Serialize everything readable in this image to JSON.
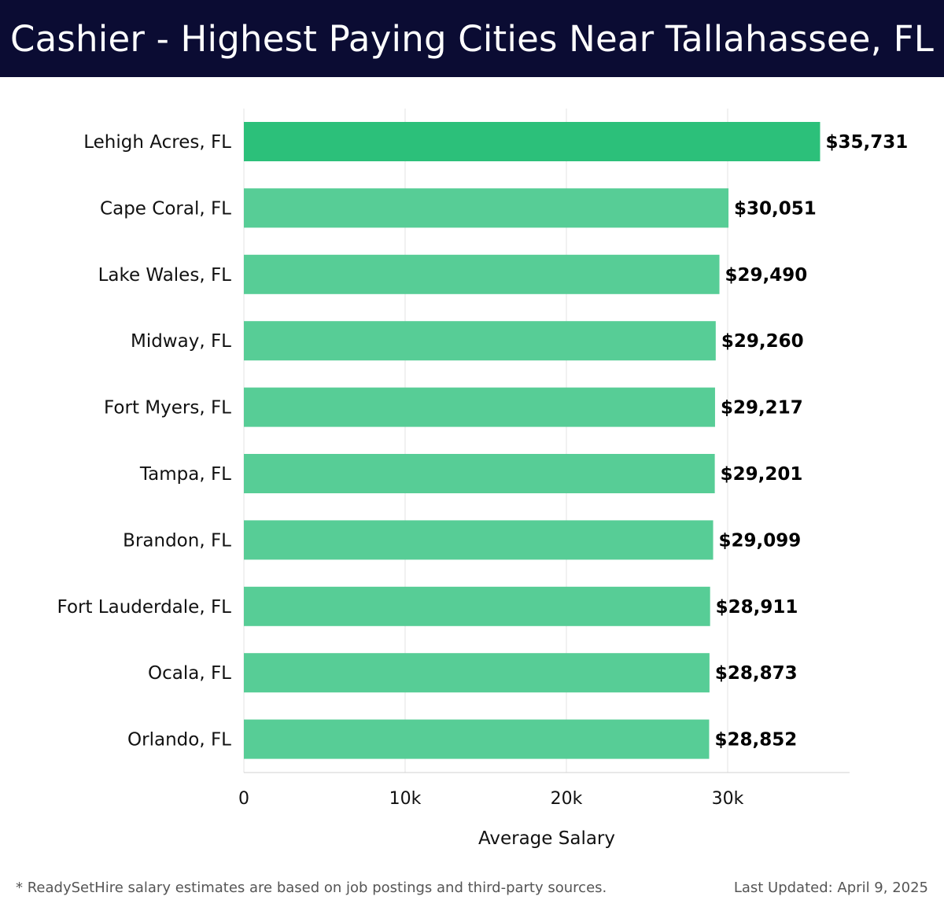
{
  "header": {
    "title": "Cashier - Highest Paying Cities Near Tallahassee, FL"
  },
  "chart_data": {
    "type": "bar",
    "orientation": "horizontal",
    "title": "Cashier - Highest Paying Cities Near Tallahassee, FL",
    "xlabel": "Average Salary",
    "ylabel": "",
    "xlim": [
      0,
      37500
    ],
    "x_ticks": [
      0,
      10000,
      20000,
      30000
    ],
    "x_tick_labels": [
      "0",
      "10k",
      "20k",
      "30k"
    ],
    "grid": "vertical",
    "categories": [
      "Lehigh Acres, FL",
      "Cape Coral, FL",
      "Lake Wales, FL",
      "Midway, FL",
      "Fort Myers, FL",
      "Tampa, FL",
      "Brandon, FL",
      "Fort Lauderdale, FL",
      "Ocala, FL",
      "Orlando, FL"
    ],
    "values": [
      35731,
      30051,
      29490,
      29260,
      29217,
      29201,
      29099,
      28911,
      28873,
      28852
    ],
    "value_labels": [
      "$35,731",
      "$30,051",
      "$29,490",
      "$29,260",
      "$29,217",
      "$29,201",
      "$29,099",
      "$28,911",
      "$28,873",
      "$28,852"
    ],
    "colors": {
      "highlight": "#2cc07a",
      "bar": "#57cd96",
      "grid": "#e3e3e3",
      "axis": "#d0d0d0",
      "text": "#111111"
    }
  },
  "footer": {
    "note": "* ReadySetHire salary estimates are based on job postings and third-party sources.",
    "updated": "Last Updated: April 9, 2025"
  }
}
